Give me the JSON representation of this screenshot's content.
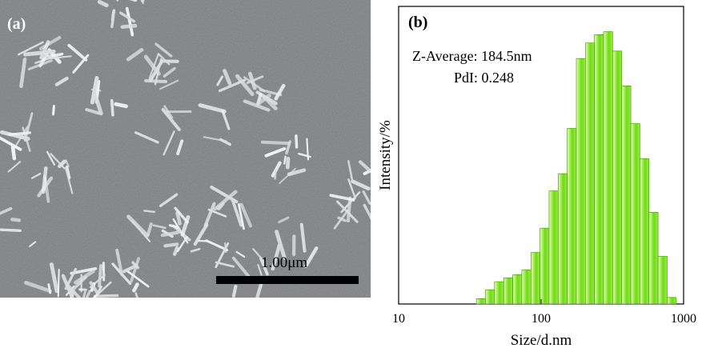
{
  "panels": {
    "a": {
      "label": "(a)",
      "scale_bar_text": "1.00μm"
    },
    "b": {
      "label": "(b)"
    }
  },
  "colors": {
    "bar_fill_light": "#e6ffb0",
    "bar_fill_dark": "#5ed40a",
    "bar_stroke": "#3a8f05",
    "sem_background": "#7c7f82",
    "sem_particles": "#dcdee0"
  },
  "chart_data": {
    "type": "bar",
    "xscale": "log",
    "xlim": [
      10,
      1000
    ],
    "xticks": [
      "10",
      "100",
      "1000"
    ],
    "xlabel": "Size/d.nm",
    "ylabel": "Intensity/%",
    "ylim": [
      0,
      100
    ],
    "grid": false,
    "annotations": [
      "Z-Average: 184.5nm",
      "PdI: 0.248"
    ],
    "x": [
      37.8,
      43.8,
      50.7,
      58.8,
      68.1,
      78.8,
      91.3,
      105.7,
      122.4,
      141.8,
      164.2,
      190.1,
      220.2,
      255.0,
      295.3,
      342.0,
      396.1,
      458.7,
      531.2,
      615.1,
      712.4,
      825.0
    ],
    "values": [
      1.8,
      4.8,
      7.5,
      8.8,
      9.9,
      11.5,
      17.3,
      25.5,
      38.0,
      43.8,
      59.0,
      82.5,
      87.7,
      90.5,
      91.5,
      85.0,
      73.3,
      60.6,
      48.8,
      30.8,
      16.0,
      2.2
    ]
  }
}
